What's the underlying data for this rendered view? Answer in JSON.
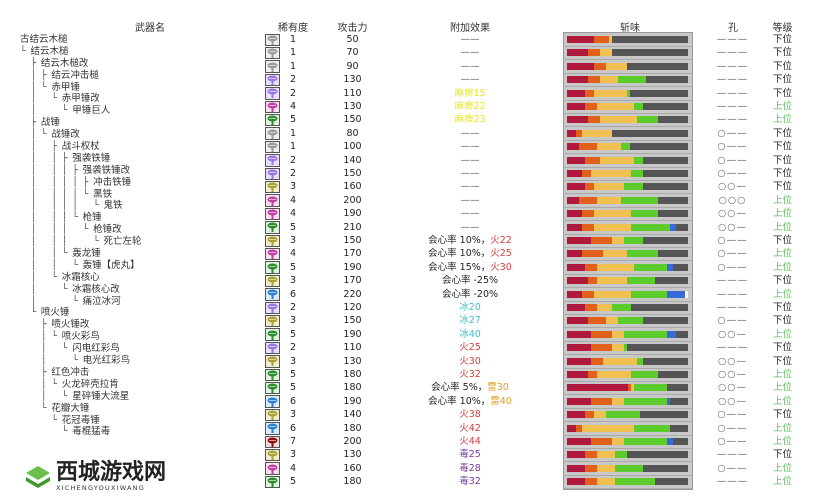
{
  "headers": {
    "name": "武器名",
    "rarity": "稀有度",
    "attack": "攻击力",
    "effect": "附加效果",
    "sharpness": "斩味",
    "slots": "孔",
    "rank": "等级"
  },
  "colors": {
    "rarity": {
      "1": "#9a9a9a",
      "2": "#9a78e0",
      "3": "#a8a030",
      "4": "#c040a0",
      "5": "#2e8b2e",
      "6": "#2a7fd0",
      "7": "#8b1010"
    },
    "rarity_bg": {
      "1": "#eeeeee",
      "2": "#e6e0fa",
      "3": "#f0eed0",
      "4": "#f6e0f0",
      "5": "#e0f2e0",
      "6": "#ddeafa",
      "7": "#f4dada"
    },
    "effect": {
      "none": "#666666",
      "normal": "#222222",
      "fire": "#d04040",
      "ice": "#40c0d0",
      "thunder": "#e0a020",
      "poison": "#7a3a9a",
      "para": "#e8e820"
    },
    "sharpness": [
      "#b0183c",
      "#e0601c",
      "#f0c050",
      "#5ccc2c",
      "#3a6ad8",
      "#ffffff"
    ],
    "rank": {
      "下位": "#222222",
      "上位": "#5cbf5c"
    }
  },
  "tree": [
    {
      "prefix": "",
      "name": "古结云木槌"
    },
    {
      "prefix": "└ ",
      "name": "结云木槌"
    },
    {
      "prefix": "  ├ ",
      "name": "结云木槌改"
    },
    {
      "prefix": "  │ ├ ",
      "name": "结云冲击槌"
    },
    {
      "prefix": "  │ └ ",
      "name": "赤甲锤"
    },
    {
      "prefix": "  │   └ ",
      "name": "赤甲锤改"
    },
    {
      "prefix": "  │     └ ",
      "name": "甲锤巨人"
    },
    {
      "prefix": "  ├ ",
      "name": "战锤"
    },
    {
      "prefix": "  │ └ ",
      "name": "战锤改"
    },
    {
      "prefix": "  │   ├ ",
      "name": "战斗权杖"
    },
    {
      "prefix": "  │   │ ├ ",
      "name": "强袭铁锤"
    },
    {
      "prefix": "  │   │ │ ├ ",
      "name": "强袭铁锤改"
    },
    {
      "prefix": "  │   │ │ │ ├ ",
      "name": "冲击铁锤"
    },
    {
      "prefix": "  │   │ │ │ └ ",
      "name": "黑铁"
    },
    {
      "prefix": "  │   │ │ │   └ ",
      "name": "鬼铁"
    },
    {
      "prefix": "  │   │ │ └ ",
      "name": "枪锤"
    },
    {
      "prefix": "  │   │ │   └ ",
      "name": "枪锤改"
    },
    {
      "prefix": "  │   │ │     └ ",
      "name": "死亡左轮"
    },
    {
      "prefix": "  │   │ └ ",
      "name": "轰龙锤"
    },
    {
      "prefix": "  │   │   └ ",
      "name": "轰锤【虎丸】"
    },
    {
      "prefix": "  │   └ ",
      "name": "冰霜核心"
    },
    {
      "prefix": "  │     └ ",
      "name": "冰霜核心改"
    },
    {
      "prefix": "  │       └ ",
      "name": "痛泣冰河"
    },
    {
      "prefix": "  └ ",
      "name": "喷火锤"
    },
    {
      "prefix": "    ├ ",
      "name": "喷火锤改"
    },
    {
      "prefix": "    │ └ ",
      "name": "喷火彩鸟"
    },
    {
      "prefix": "    │   └ ",
      "name": "闪电红彩鸟"
    },
    {
      "prefix": "    │     └ ",
      "name": "电光红彩鸟"
    },
    {
      "prefix": "    ├ ",
      "name": "红色冲击"
    },
    {
      "prefix": "    │ └ ",
      "name": "火龙碎壳拉肯"
    },
    {
      "prefix": "    │   └ ",
      "name": "星碎锤大流星"
    },
    {
      "prefix": "    └ ",
      "name": "花瓣大锤"
    },
    {
      "prefix": "      └ ",
      "name": "花冠毒锤"
    },
    {
      "prefix": "        └ ",
      "name": "毒棍猛毒"
    }
  ],
  "rows": [
    {
      "rarity": 1,
      "attack": 50,
      "effect": [
        {
          "t": "——",
          "k": "none"
        }
      ],
      "sharpness": [
        9,
        5,
        1,
        0,
        0,
        0
      ],
      "slots": "———",
      "rank": "下位"
    },
    {
      "rarity": 1,
      "attack": 70,
      "effect": [
        {
          "t": "——",
          "k": "none"
        }
      ],
      "sharpness": [
        7,
        4,
        4,
        0,
        0,
        0
      ],
      "slots": "———",
      "rank": "下位"
    },
    {
      "rarity": 1,
      "attack": 90,
      "effect": [
        {
          "t": "——",
          "k": "none"
        }
      ],
      "sharpness": [
        9,
        4,
        7,
        0,
        0,
        0
      ],
      "slots": "———",
      "rank": "下位"
    },
    {
      "rarity": 2,
      "attack": 130,
      "effect": [
        {
          "t": "——",
          "k": "none"
        }
      ],
      "sharpness": [
        7,
        4,
        6,
        9,
        0,
        0
      ],
      "slots": "———",
      "rank": "下位"
    },
    {
      "rarity": 2,
      "attack": 110,
      "effect": [
        {
          "t": "麻痹15",
          "k": "para"
        }
      ],
      "sharpness": [
        6,
        3,
        11,
        1,
        0,
        0
      ],
      "slots": "———",
      "rank": "下位"
    },
    {
      "rarity": 4,
      "attack": 130,
      "effect": [
        {
          "t": "麻痹22",
          "k": "para"
        }
      ],
      "sharpness": [
        6,
        4,
        12,
        3,
        0,
        0
      ],
      "slots": "———",
      "rank": "上位"
    },
    {
      "rarity": 5,
      "attack": 150,
      "effect": [
        {
          "t": "麻痹23",
          "k": "para"
        }
      ],
      "sharpness": [
        7,
        4,
        12,
        7,
        0,
        0
      ],
      "slots": "———",
      "rank": "上位"
    },
    {
      "rarity": 1,
      "attack": 80,
      "effect": [
        {
          "t": "——",
          "k": "none"
        }
      ],
      "sharpness": [
        3,
        2,
        10,
        0,
        0,
        0
      ],
      "slots": "○——",
      "rank": "下位"
    },
    {
      "rarity": 1,
      "attack": 100,
      "effect": [
        {
          "t": "——",
          "k": "none"
        }
      ],
      "sharpness": [
        4,
        6,
        8,
        3,
        0,
        0
      ],
      "slots": "○——",
      "rank": "下位"
    },
    {
      "rarity": 2,
      "attack": 140,
      "effect": [
        {
          "t": "——",
          "k": "none"
        }
      ],
      "sharpness": [
        6,
        5,
        11,
        3,
        0,
        0
      ],
      "slots": "○——",
      "rank": "下位"
    },
    {
      "rarity": 2,
      "attack": 150,
      "effect": [
        {
          "t": "——",
          "k": "none"
        }
      ],
      "sharpness": [
        5,
        3,
        13,
        4,
        0,
        0
      ],
      "slots": "○——",
      "rank": "下位"
    },
    {
      "rarity": 3,
      "attack": 160,
      "effect": [
        {
          "t": "——",
          "k": "none"
        }
      ],
      "sharpness": [
        6,
        3,
        10,
        6,
        0,
        0
      ],
      "slots": "○○—",
      "rank": "下位"
    },
    {
      "rarity": 4,
      "attack": 200,
      "effect": [
        {
          "t": "——",
          "k": "none"
        }
      ],
      "sharpness": [
        4,
        6,
        8,
        12,
        0,
        0
      ],
      "slots": "○○○",
      "rank": "上位"
    },
    {
      "rarity": 4,
      "attack": 190,
      "effect": [
        {
          "t": "——",
          "k": "none"
        }
      ],
      "sharpness": [
        5,
        4,
        12,
        9,
        0,
        0
      ],
      "slots": "○○—",
      "rank": "上位"
    },
    {
      "rarity": 5,
      "attack": 210,
      "effect": [
        {
          "t": "——",
          "k": "none"
        }
      ],
      "sharpness": [
        5,
        4,
        12,
        13,
        2,
        0
      ],
      "slots": "○○—",
      "rank": "上位"
    },
    {
      "rarity": 3,
      "attack": 150,
      "effect": [
        {
          "t": "会心率 10%，",
          "k": "normal"
        },
        {
          "t": "火22",
          "k": "fire"
        }
      ],
      "sharpness": [
        8,
        7,
        4,
        6,
        0,
        0
      ],
      "slots": "○——",
      "rank": "下位"
    },
    {
      "rarity": 4,
      "attack": 170,
      "effect": [
        {
          "t": "会心率 10%，",
          "k": "normal"
        },
        {
          "t": "火25",
          "k": "fire"
        }
      ],
      "sharpness": [
        5,
        7,
        8,
        10,
        0,
        0
      ],
      "slots": "○——",
      "rank": "上位"
    },
    {
      "rarity": 5,
      "attack": 190,
      "effect": [
        {
          "t": "会心率 15%，",
          "k": "normal"
        },
        {
          "t": "火30",
          "k": "fire"
        }
      ],
      "sharpness": [
        6,
        4,
        12,
        11,
        2,
        0
      ],
      "slots": "○——",
      "rank": "上位"
    },
    {
      "rarity": 3,
      "attack": 170,
      "effect": [
        {
          "t": "会心率 -25%",
          "k": "normal"
        }
      ],
      "sharpness": [
        7,
        3,
        10,
        9,
        0,
        0
      ],
      "slots": "———",
      "rank": "下位"
    },
    {
      "rarity": 6,
      "attack": 220,
      "effect": [
        {
          "t": "会心率 -20%",
          "k": "normal"
        }
      ],
      "sharpness": [
        5,
        4,
        12,
        12,
        6,
        1
      ],
      "slots": "———",
      "rank": "上位"
    },
    {
      "rarity": 2,
      "attack": 120,
      "effect": [
        {
          "t": "冰20",
          "k": "ice"
        }
      ],
      "sharpness": [
        6,
        4,
        5,
        6,
        0,
        0
      ],
      "slots": "———",
      "rank": "下位"
    },
    {
      "rarity": 3,
      "attack": 150,
      "effect": [
        {
          "t": "冰27",
          "k": "ice"
        }
      ],
      "sharpness": [
        7,
        6,
        4,
        8,
        0,
        0
      ],
      "slots": "○——",
      "rank": "下位"
    },
    {
      "rarity": 5,
      "attack": 190,
      "effect": [
        {
          "t": "冰40",
          "k": "ice"
        }
      ],
      "sharpness": [
        8,
        7,
        4,
        14,
        3,
        0
      ],
      "slots": "○○—",
      "rank": "上位"
    },
    {
      "rarity": 2,
      "attack": 110,
      "effect": [
        {
          "t": "火25",
          "k": "fire"
        }
      ],
      "sharpness": [
        8,
        7,
        4,
        1,
        0,
        0
      ],
      "slots": "———",
      "rank": "下位"
    },
    {
      "rarity": 3,
      "attack": 130,
      "effect": [
        {
          "t": "火30",
          "k": "fire"
        }
      ],
      "sharpness": [
        8,
        4,
        11,
        2,
        0,
        0
      ],
      "slots": "○○—",
      "rank": "下位"
    },
    {
      "rarity": 5,
      "attack": 180,
      "effect": [
        {
          "t": "火32",
          "k": "fire"
        }
      ],
      "sharpness": [
        7,
        3,
        11,
        9,
        0,
        0
      ],
      "slots": "○○—",
      "rank": "上位"
    },
    {
      "rarity": 5,
      "attack": 180,
      "effect": [
        {
          "t": "会心率 5%，",
          "k": "normal"
        },
        {
          "t": "雷30",
          "k": "thunder"
        }
      ],
      "sharpness": [
        20,
        1,
        1,
        11,
        0,
        0
      ],
      "slots": "○○—",
      "rank": "上位"
    },
    {
      "rarity": 6,
      "attack": 190,
      "effect": [
        {
          "t": "会心率 10%，",
          "k": "normal"
        },
        {
          "t": "雷40",
          "k": "thunder"
        }
      ],
      "sharpness": [
        8,
        7,
        4,
        14,
        1,
        0
      ],
      "slots": "○○—",
      "rank": "上位"
    },
    {
      "rarity": 3,
      "attack": 140,
      "effect": [
        {
          "t": "火38",
          "k": "fire"
        }
      ],
      "sharpness": [
        6,
        3,
        4,
        11,
        0,
        0
      ],
      "slots": "○——",
      "rank": "下位"
    },
    {
      "rarity": 6,
      "attack": 180,
      "effect": [
        {
          "t": "火42",
          "k": "fire"
        }
      ],
      "sharpness": [
        3,
        2,
        17,
        12,
        0,
        0
      ],
      "slots": "○——",
      "rank": "上位"
    },
    {
      "rarity": 7,
      "attack": 200,
      "effect": [
        {
          "t": "火44",
          "k": "fire"
        }
      ],
      "sharpness": [
        8,
        7,
        4,
        14,
        2,
        0
      ],
      "slots": "○——",
      "rank": "上位"
    },
    {
      "rarity": 3,
      "attack": 130,
      "effect": [
        {
          "t": "毒25",
          "k": "poison"
        }
      ],
      "sharpness": [
        6,
        4,
        6,
        4,
        0,
        0
      ],
      "slots": "———",
      "rank": "下位"
    },
    {
      "rarity": 4,
      "attack": 160,
      "effect": [
        {
          "t": "毒28",
          "k": "poison"
        }
      ],
      "sharpness": [
        6,
        4,
        6,
        9,
        0,
        0
      ],
      "slots": "○——",
      "rank": "上位"
    },
    {
      "rarity": 5,
      "attack": 180,
      "effect": [
        {
          "t": "毒32",
          "k": "poison"
        }
      ],
      "sharpness": [
        6,
        4,
        6,
        13,
        0,
        0
      ],
      "slots": "———",
      "rank": "上位"
    }
  ],
  "sharpness_max": 40,
  "watermark": {
    "title": "西城游戏网",
    "subtitle": "XICHENGYOUXIWANG"
  }
}
